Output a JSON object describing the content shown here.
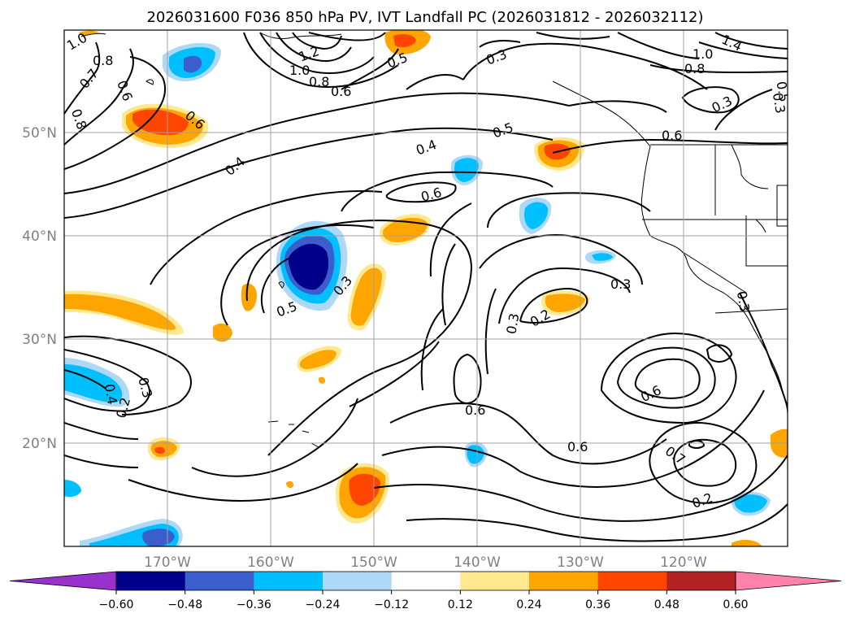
{
  "title": "2026031600 F036 850 hPa PV, IVT Landfall PC (2026031812 - 2026032112)",
  "map": {
    "lon_labels": [
      "170°W",
      "160°W",
      "150°W",
      "140°W",
      "130°W",
      "120°W"
    ],
    "lat_labels": [
      "50°N",
      "40°N",
      "30°N",
      "20°N"
    ],
    "gridlines": true,
    "contour_labels": [
      "1.0",
      "0.8",
      "0.7",
      "0.6",
      "0.6",
      "0.4",
      "0.4",
      "0.5",
      "0.6",
      "0.5",
      "0.3",
      "0.3",
      "0.2",
      "0.3",
      "0.6",
      "0.6",
      "0.6",
      "0.7",
      "0.2",
      "0.3",
      "0.3",
      "0.4",
      "0.2",
      "1.0",
      "0.8",
      "1.4",
      "0.3",
      "0.6",
      "0.5",
      "1.2",
      "1.0",
      "0.8",
      "0.6",
      "0.8",
      "0.5",
      "0.3",
      "0.3"
    ]
  },
  "colorbar": {
    "ticks": [
      "−0.60",
      "−0.48",
      "−0.36",
      "−0.24",
      "−0.12",
      "0.12",
      "0.24",
      "0.36",
      "0.48",
      "0.60"
    ],
    "colors": [
      "#9932cc",
      "#00008b",
      "#3a5fcd",
      "#00bfff",
      "#add8f6",
      "#ffffff",
      "#ffe890",
      "#ffa500",
      "#ff4500",
      "#b22222",
      "#ff82ab"
    ]
  }
}
